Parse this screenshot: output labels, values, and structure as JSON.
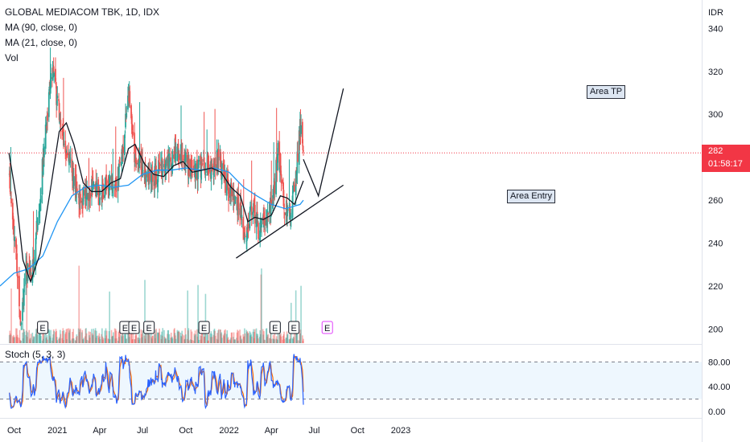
{
  "header": {
    "title": "GLOBAL MEDIACOM TBK, 1D, IDX",
    "indicators": [
      "MA (90, close, 0)",
      "MA (21, close, 0)",
      "Vol"
    ]
  },
  "currency": "IDR",
  "last_price": {
    "value": "282",
    "countdown": "01:58:17"
  },
  "stoch_label": "Stoch (5, 3, 3)",
  "colors": {
    "up": "#26a69a",
    "down": "#ef5350",
    "ma90": "#2196f3",
    "ma21": "#131722",
    "stoch_k": "#2962ff",
    "stoch_d": "#ff6d00",
    "last": "#f23645"
  },
  "annotations": [
    {
      "label": "Area TP"
    },
    {
      "label": "Area Entry"
    }
  ],
  "chart_data": {
    "type": "candlestick",
    "title": "GLOBAL MEDIACOM TBK, 1D, IDX",
    "price_axis": {
      "ticks": [
        340,
        320,
        300,
        280,
        260,
        240,
        220,
        200
      ],
      "range": [
        193,
        351
      ]
    },
    "time_axis": {
      "labels": [
        "Oct",
        "2021",
        "Apr",
        "Jul",
        "Oct",
        "2022",
        "Apr",
        "Jul",
        "Oct",
        "2023"
      ]
    },
    "stoch_axis": {
      "ticks": [
        "80.00",
        "40.00",
        "0.00"
      ],
      "band": [
        20,
        80
      ]
    },
    "earnings_markers": [
      "E",
      "E",
      "E",
      "E",
      "E",
      "E",
      "E",
      "E"
    ],
    "price_path": [
      {
        "date": "2020-09-20",
        "price": 275
      },
      {
        "date": "2020-10-05",
        "price": 235
      },
      {
        "date": "2020-10-15",
        "price": 205
      },
      {
        "date": "2020-10-25",
        "price": 225
      },
      {
        "date": "2020-11-10",
        "price": 228
      },
      {
        "date": "2020-11-25",
        "price": 262
      },
      {
        "date": "2020-12-10",
        "price": 300
      },
      {
        "date": "2020-12-22",
        "price": 322
      },
      {
        "date": "2021-01-08",
        "price": 295
      },
      {
        "date": "2021-01-22",
        "price": 282
      },
      {
        "date": "2021-02-05",
        "price": 268
      },
      {
        "date": "2021-02-18",
        "price": 260
      },
      {
        "date": "2021-03-05",
        "price": 262
      },
      {
        "date": "2021-03-20",
        "price": 268
      },
      {
        "date": "2021-04-05",
        "price": 262
      },
      {
        "date": "2021-04-20",
        "price": 270
      },
      {
        "date": "2021-05-05",
        "price": 268
      },
      {
        "date": "2021-05-20",
        "price": 282
      },
      {
        "date": "2021-06-01",
        "price": 312
      },
      {
        "date": "2021-06-15",
        "price": 280
      },
      {
        "date": "2021-07-01",
        "price": 278
      },
      {
        "date": "2021-07-20",
        "price": 268
      },
      {
        "date": "2021-08-05",
        "price": 275
      },
      {
        "date": "2021-08-25",
        "price": 278
      },
      {
        "date": "2021-09-10",
        "price": 285
      },
      {
        "date": "2021-09-30",
        "price": 278
      },
      {
        "date": "2021-10-20",
        "price": 272
      },
      {
        "date": "2021-11-05",
        "price": 276
      },
      {
        "date": "2021-11-25",
        "price": 274
      },
      {
        "date": "2021-12-10",
        "price": 280
      },
      {
        "date": "2021-12-25",
        "price": 266
      },
      {
        "date": "2022-01-10",
        "price": 262
      },
      {
        "date": "2022-01-25",
        "price": 255
      },
      {
        "date": "2022-02-05",
        "price": 242
      },
      {
        "date": "2022-02-20",
        "price": 258
      },
      {
        "date": "2022-03-05",
        "price": 246
      },
      {
        "date": "2022-03-20",
        "price": 252
      },
      {
        "date": "2022-04-05",
        "price": 262
      },
      {
        "date": "2022-04-15",
        "price": 282
      },
      {
        "date": "2022-04-28",
        "price": 258
      },
      {
        "date": "2022-05-10",
        "price": 252
      },
      {
        "date": "2022-05-22",
        "price": 270
      },
      {
        "date": "2022-06-01",
        "price": 295
      },
      {
        "date": "2022-06-08",
        "price": 282
      }
    ],
    "ma21": [
      {
        "date": "2020-09-20",
        "price": 282
      },
      {
        "date": "2020-10-05",
        "price": 262
      },
      {
        "date": "2020-10-20",
        "price": 232
      },
      {
        "date": "2020-11-05",
        "price": 222
      },
      {
        "date": "2020-11-25",
        "price": 235
      },
      {
        "date": "2020-12-15",
        "price": 262
      },
      {
        "date": "2021-01-05",
        "price": 292
      },
      {
        "date": "2021-01-20",
        "price": 296
      },
      {
        "date": "2021-02-05",
        "price": 286
      },
      {
        "date": "2021-02-25",
        "price": 268
      },
      {
        "date": "2021-03-15",
        "price": 264
      },
      {
        "date": "2021-04-05",
        "price": 264
      },
      {
        "date": "2021-04-25",
        "price": 268
      },
      {
        "date": "2021-05-15",
        "price": 270
      },
      {
        "date": "2021-06-01",
        "price": 284
      },
      {
        "date": "2021-06-15",
        "price": 286
      },
      {
        "date": "2021-07-05",
        "price": 277
      },
      {
        "date": "2021-07-25",
        "price": 272
      },
      {
        "date": "2021-08-15",
        "price": 271
      },
      {
        "date": "2021-09-05",
        "price": 276
      },
      {
        "date": "2021-09-25",
        "price": 278
      },
      {
        "date": "2021-10-15",
        "price": 273
      },
      {
        "date": "2021-11-05",
        "price": 274
      },
      {
        "date": "2021-11-25",
        "price": 275
      },
      {
        "date": "2021-12-15",
        "price": 273
      },
      {
        "date": "2022-01-05",
        "price": 266
      },
      {
        "date": "2022-01-25",
        "price": 262
      },
      {
        "date": "2022-02-10",
        "price": 250
      },
      {
        "date": "2022-02-25",
        "price": 252
      },
      {
        "date": "2022-03-15",
        "price": 251
      },
      {
        "date": "2022-04-01",
        "price": 253
      },
      {
        "date": "2022-04-20",
        "price": 262
      },
      {
        "date": "2022-05-05",
        "price": 261
      },
      {
        "date": "2022-05-20",
        "price": 258
      },
      {
        "date": "2022-06-01",
        "price": 265
      },
      {
        "date": "2022-06-08",
        "price": 269
      }
    ],
    "ma90": [
      {
        "date": "2020-09-01",
        "price": 220
      },
      {
        "date": "2020-10-01",
        "price": 226
      },
      {
        "date": "2020-11-01",
        "price": 228
      },
      {
        "date": "2020-12-01",
        "price": 234
      },
      {
        "date": "2021-01-01",
        "price": 250
      },
      {
        "date": "2021-02-01",
        "price": 262
      },
      {
        "date": "2021-03-01",
        "price": 266
      },
      {
        "date": "2021-04-01",
        "price": 267
      },
      {
        "date": "2021-05-01",
        "price": 266
      },
      {
        "date": "2021-06-01",
        "price": 267
      },
      {
        "date": "2021-07-01",
        "price": 272
      },
      {
        "date": "2021-08-01",
        "price": 274
      },
      {
        "date": "2021-09-01",
        "price": 274
      },
      {
        "date": "2021-10-01",
        "price": 275
      },
      {
        "date": "2021-11-01",
        "price": 274
      },
      {
        "date": "2021-12-01",
        "price": 275
      },
      {
        "date": "2022-01-01",
        "price": 273
      },
      {
        "date": "2022-02-01",
        "price": 266
      },
      {
        "date": "2022-03-01",
        "price": 262
      },
      {
        "date": "2022-04-01",
        "price": 258
      },
      {
        "date": "2022-05-01",
        "price": 256
      },
      {
        "date": "2022-06-01",
        "price": 258
      },
      {
        "date": "2022-06-08",
        "price": 260
      }
    ],
    "drawings": {
      "support_trendline": [
        {
          "date": "2022-01-16",
          "price": 233
        },
        {
          "date": "2022-09-01",
          "price": 267
        }
      ],
      "projection": [
        {
          "date": "2022-06-08",
          "price": 279
        },
        {
          "date": "2022-07-10",
          "price": 262
        },
        {
          "date": "2022-09-01",
          "price": 312
        }
      ],
      "last_price_line": 282
    }
  }
}
